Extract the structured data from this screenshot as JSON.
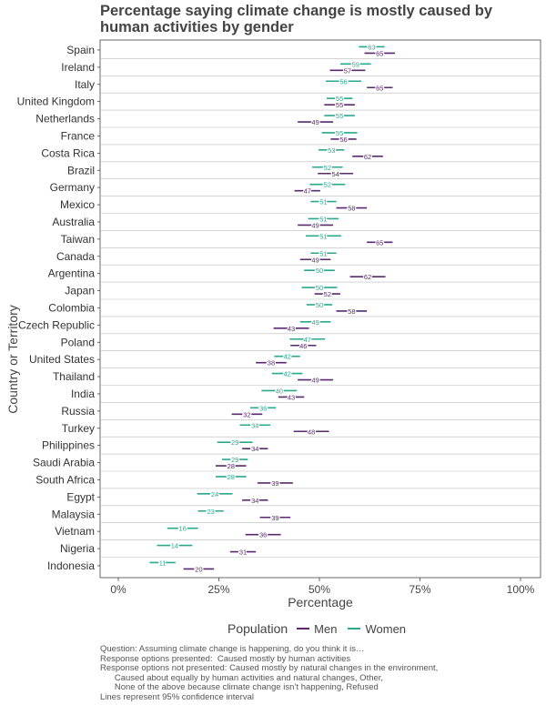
{
  "chart_data": {
    "type": "dot-range",
    "title": "Percentage saying climate change is mostly caused by human activities by gender",
    "xlabel": "Percentage",
    "ylabel": "Country or Territory",
    "xlim": [
      0,
      100
    ],
    "x_ticks": [
      "0%",
      "25%",
      "50%",
      "75%",
      "100%"
    ],
    "legend": {
      "title": "Population",
      "position": "bottom"
    },
    "series": [
      {
        "name": "Men",
        "color": "#5a2a6e"
      },
      {
        "name": "Women",
        "color": "#2aa88f"
      }
    ],
    "rows": [
      {
        "country": "Spain",
        "women": 63,
        "men": 65
      },
      {
        "country": "Ireland",
        "women": 59,
        "men": 57
      },
      {
        "country": "Italy",
        "women": 56,
        "men": 65
      },
      {
        "country": "United Kingdom",
        "women": 55,
        "men": 55
      },
      {
        "country": "Netherlands",
        "women": 55,
        "men": 49
      },
      {
        "country": "France",
        "women": 55,
        "men": 56
      },
      {
        "country": "Costa Rica",
        "women": 53,
        "men": 62
      },
      {
        "country": "Brazil",
        "women": 52,
        "men": 54
      },
      {
        "country": "Germany",
        "women": 52,
        "men": 47
      },
      {
        "country": "Mexico",
        "women": 51,
        "men": 58
      },
      {
        "country": "Australia",
        "women": 51,
        "men": 49
      },
      {
        "country": "Taiwan",
        "women": 51,
        "men": 65
      },
      {
        "country": "Canada",
        "women": 51,
        "men": 49
      },
      {
        "country": "Argentina",
        "women": 50,
        "men": 62
      },
      {
        "country": "Japan",
        "women": 50,
        "men": 52
      },
      {
        "country": "Colombia",
        "women": 50,
        "men": 58
      },
      {
        "country": "Czech Republic",
        "women": 49,
        "men": 43
      },
      {
        "country": "Poland",
        "women": 47,
        "men": 46
      },
      {
        "country": "United States",
        "women": 42,
        "men": 38
      },
      {
        "country": "Thailand",
        "women": 42,
        "men": 49
      },
      {
        "country": "India",
        "women": 40,
        "men": 43
      },
      {
        "country": "Russia",
        "women": 36,
        "men": 32
      },
      {
        "country": "Turkey",
        "women": 34,
        "men": 48
      },
      {
        "country": "Philippines",
        "women": 29,
        "men": 34
      },
      {
        "country": "Saudi Arabia",
        "women": 29,
        "men": 28
      },
      {
        "country": "South Africa",
        "women": 28,
        "men": 39
      },
      {
        "country": "Egypt",
        "women": 24,
        "men": 34
      },
      {
        "country": "Malaysia",
        "women": 23,
        "men": 39
      },
      {
        "country": "Vietnam",
        "women": 16,
        "men": 36
      },
      {
        "country": "Nigeria",
        "women": 14,
        "men": 31
      },
      {
        "country": "Indonesia",
        "women": 11,
        "men": 20
      }
    ]
  },
  "caption": [
    "Question: Assuming climate change is happening, do you think it is…",
    "Response options presented:  Caused mostly by human activities",
    "Response options not presented: Caused mostly by natural changes in the environment,",
    "      Caused about equally by human activities and natural changes, Other,",
    "      None of the above because climate change isn’t happening, Refused",
    "Lines represent 95% confidence interval"
  ]
}
